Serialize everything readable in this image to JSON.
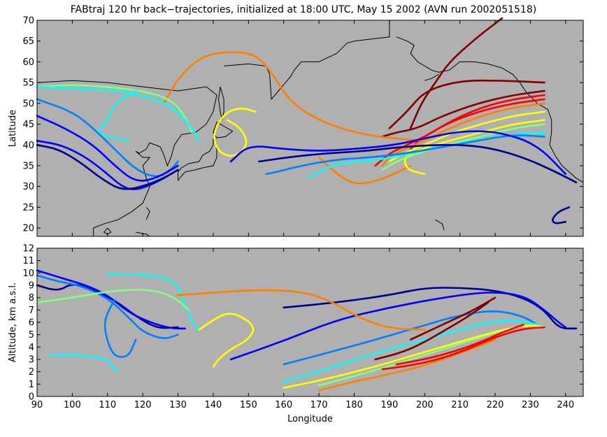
{
  "title": "FABtraj 120 hr back−trajectories, initialized at 18:00 UTC, May 15 2002 (AVN run 2002051518)",
  "colors": {
    "plot_background": "#b0b0b0",
    "figure_background": "#ffffff",
    "coastline": "#000000",
    "colormap": [
      "#00008f",
      "#0000ff",
      "#0080ff",
      "#00ffff",
      "#80ff80",
      "#ffff00",
      "#ff8000",
      "#ff0000",
      "#800000"
    ]
  },
  "chart_data": [
    {
      "type": "line",
      "panel": "map",
      "ylabel": "Latitude",
      "xlim": [
        90,
        245
      ],
      "ylim": [
        18,
        70
      ],
      "yticks": [
        20,
        25,
        30,
        35,
        40,
        45,
        50,
        55,
        60,
        65,
        70
      ],
      "grid": false,
      "series": [
        {
          "color": "#800000",
          "x": [
            234,
            225,
            215,
            205,
            198,
            192,
            188
          ],
          "y": [
            53,
            52,
            50,
            47,
            44,
            43,
            42
          ]
        },
        {
          "color": "#800000",
          "x": [
            234,
            222,
            210,
            200,
            195,
            190
          ],
          "y": [
            55,
            55.5,
            55.5,
            53,
            48,
            44
          ]
        },
        {
          "color": "#800000",
          "x": [
            222,
            215,
            207,
            203,
            199,
            196
          ],
          "y": [
            70.5,
            66,
            60,
            55,
            50,
            44
          ]
        },
        {
          "color": "#ff0000",
          "x": [
            234,
            225,
            216,
            208,
            202,
            198,
            196
          ],
          "y": [
            52,
            51,
            49,
            46,
            43,
            41,
            39
          ]
        },
        {
          "color": "#ff0000",
          "x": [
            234,
            225,
            215,
            206,
            200,
            195,
            190,
            186
          ],
          "y": [
            51,
            50,
            48,
            45,
            42,
            40,
            38,
            35
          ]
        },
        {
          "color": "#ff8000",
          "x": [
            234,
            225,
            216,
            207,
            200,
            194,
            190,
            188
          ],
          "y": [
            50,
            49,
            47,
            44,
            41,
            39,
            37,
            35
          ]
        },
        {
          "color": "#ff8000",
          "x": [
            200,
            185,
            172,
            162,
            157,
            152,
            143,
            136,
            130,
            126
          ],
          "y": [
            41,
            42,
            45,
            50,
            57,
            62,
            62.5,
            61,
            56,
            50
          ]
        },
        {
          "color": "#ff8000",
          "x": [
            170,
            175,
            180,
            185,
            190,
            196
          ],
          "y": [
            37,
            33,
            30.5,
            31,
            32.5,
            35
          ]
        },
        {
          "color": "#ffff00",
          "x": [
            234,
            225,
            216,
            208,
            200,
            194,
            190
          ],
          "y": [
            48,
            47,
            45,
            43,
            40,
            38,
            36
          ]
        },
        {
          "color": "#ffff00",
          "x": [
            234,
            225,
            216,
            207,
            199,
            194,
            195,
            200
          ],
          "y": [
            46,
            45,
            43,
            41,
            39,
            37,
            34,
            33
          ]
        },
        {
          "color": "#ffff00",
          "x": [
            152,
            148,
            144,
            141,
            140,
            142,
            146,
            150,
            148,
            144
          ],
          "y": [
            48,
            49,
            48,
            45,
            41,
            38,
            37,
            40,
            44,
            46
          ]
        },
        {
          "color": "#80ff80",
          "x": [
            234,
            225,
            216,
            206,
            198,
            192,
            188
          ],
          "y": [
            45,
            44,
            42,
            40,
            38,
            36,
            34
          ]
        },
        {
          "color": "#80ff80",
          "x": [
            90,
            100,
            110,
            120,
            128,
            132,
            134
          ],
          "y": [
            54,
            54.5,
            54,
            53,
            51,
            47,
            43
          ]
        },
        {
          "color": "#00ffff",
          "x": [
            234,
            224,
            214,
            204,
            196,
            188,
            180,
            173,
            167
          ],
          "y": [
            43,
            42.5,
            41,
            39.5,
            38,
            36.5,
            36,
            35,
            32
          ]
        },
        {
          "color": "#00ffff",
          "x": [
            90,
            102,
            114,
            124,
            130,
            134,
            136
          ],
          "y": [
            54,
            53.5,
            53,
            51,
            48,
            44,
            41
          ]
        },
        {
          "color": "#00ffff",
          "x": [
            118,
            112,
            110,
            108,
            107,
            110,
            116
          ],
          "y": [
            53,
            50,
            46,
            44,
            43,
            42,
            41
          ]
        },
        {
          "color": "#0080ff",
          "x": [
            234,
            225,
            215,
            205,
            195,
            185,
            175,
            165,
            158,
            155
          ],
          "y": [
            42,
            42.5,
            41,
            39.5,
            38,
            37,
            36.5,
            35,
            33.5,
            33
          ]
        },
        {
          "color": "#0080ff",
          "x": [
            90,
            100,
            106,
            112,
            118,
            124,
            128,
            130
          ],
          "y": [
            51,
            48,
            44,
            39,
            34,
            32,
            34,
            36
          ]
        },
        {
          "color": "#0000ff",
          "x": [
            240,
            232,
            222,
            212,
            202,
            192,
            180,
            170,
            160,
            150,
            145
          ],
          "y": [
            33,
            40,
            43,
            43.5,
            42,
            40,
            39,
            38.5,
            39,
            40,
            36
          ]
        },
        {
          "color": "#0000ff",
          "x": [
            90,
            98,
            106,
            112,
            118,
            124,
            130
          ],
          "y": [
            47,
            44,
            40,
            35,
            31,
            32,
            35
          ]
        },
        {
          "color": "#0000ff",
          "x": [
            90,
            97,
            104,
            110,
            114,
            118,
            124,
            130
          ],
          "y": [
            41,
            40,
            37,
            33,
            30,
            29,
            31,
            34
          ]
        },
        {
          "color": "#00008f",
          "x": [
            243,
            236,
            228,
            220,
            212,
            203,
            193,
            183,
            172,
            161,
            153
          ],
          "y": [
            31,
            34,
            37,
            39,
            40,
            40,
            39.5,
            38.5,
            38,
            37,
            36
          ]
        },
        {
          "color": "#00008f",
          "x": [
            90,
            96,
            102,
            108,
            114,
            120,
            126,
            130
          ],
          "y": [
            40,
            39,
            36,
            32,
            29,
            30,
            32,
            34
          ]
        },
        {
          "color": "#00008f",
          "x": [
            241,
            238,
            236,
            237,
            240
          ],
          "y": [
            25,
            24,
            22,
            21,
            21.5
          ]
        }
      ]
    },
    {
      "type": "line",
      "panel": "altitude",
      "xlabel": "Longitude",
      "ylabel": "Altitude, km a.s.l.",
      "xlim": [
        90,
        245
      ],
      "ylim": [
        0,
        12
      ],
      "xticks": [
        90,
        100,
        110,
        120,
        130,
        140,
        150,
        160,
        170,
        180,
        190,
        200,
        210,
        220,
        230,
        240
      ],
      "yticks": [
        0,
        1,
        2,
        3,
        4,
        5,
        6,
        7,
        8,
        9,
        10,
        11,
        12
      ],
      "grid": false,
      "series": [
        {
          "color": "#00008f",
          "x": [
            160,
            175,
            190,
            200,
            210,
            220,
            228,
            234,
            238,
            243
          ],
          "y": [
            7.2,
            7.6,
            8.2,
            8.8,
            8.8,
            8.6,
            8,
            7,
            5.5,
            5.5
          ]
        },
        {
          "color": "#00008f",
          "x": [
            90,
            96,
            100,
            106,
            112,
            118,
            124,
            130
          ],
          "y": [
            9,
            8.5,
            9.2,
            8.6,
            7.8,
            6.5,
            5.5,
            5.6
          ]
        },
        {
          "color": "#0000ff",
          "x": [
            145,
            160,
            175,
            190,
            205,
            218,
            228,
            234,
            238,
            240
          ],
          "y": [
            3,
            4.5,
            6.2,
            7.2,
            8,
            8.5,
            8.2,
            7,
            6,
            5.6
          ]
        },
        {
          "color": "#0000ff",
          "x": [
            90,
            98,
            104,
            110,
            116,
            122,
            128,
            132
          ],
          "y": [
            10.2,
            9.5,
            9,
            8.2,
            6.8,
            6,
            5.5,
            5.5
          ]
        },
        {
          "color": "#0080ff",
          "x": [
            160,
            172,
            185,
            198,
            210,
            220,
            228,
            232
          ],
          "y": [
            2.6,
            3.5,
            4.5,
            5.6,
            6.6,
            7,
            6.5,
            5.8
          ]
        },
        {
          "color": "#0080ff",
          "x": [
            90,
            96,
            102,
            110,
            116,
            120,
            126,
            130
          ],
          "y": [
            9.8,
            9.3,
            9,
            8,
            6.4,
            5.2,
            4.6,
            5
          ]
        },
        {
          "color": "#0080ff",
          "x": [
            112,
            110,
            109,
            110,
            112,
            116,
            118
          ],
          "y": [
            7.8,
            6.8,
            5.8,
            4.4,
            3.2,
            3.2,
            4.6
          ]
        },
        {
          "color": "#00ffff",
          "x": [
            160,
            172,
            186,
            200,
            212,
            222,
            230,
            234
          ],
          "y": [
            1.2,
            2.2,
            3.5,
            4.6,
            5.6,
            6.2,
            6,
            5.6
          ]
        },
        {
          "color": "#00ffff",
          "x": [
            110,
            118,
            126,
            130,
            132,
            134,
            136
          ],
          "y": [
            9.9,
            9.9,
            9.7,
            9,
            7.5,
            6,
            5.3
          ]
        },
        {
          "color": "#00ffff",
          "x": [
            93,
            100,
            106,
            110,
            111,
            112,
            113
          ],
          "y": [
            3.3,
            3.4,
            3.2,
            3,
            2.6,
            2.2,
            2
          ]
        },
        {
          "color": "#80ff80",
          "x": [
            170,
            182,
            194,
            206,
            216,
            224,
            230,
            234
          ],
          "y": [
            0.9,
            1.8,
            2.8,
            3.9,
            4.8,
            5.5,
            5.8,
            5.6
          ]
        },
        {
          "color": "#80ff80",
          "x": [
            90,
            100,
            110,
            120,
            126,
            130,
            133
          ],
          "y": [
            7.6,
            8,
            8.5,
            8.7,
            8.4,
            7.8,
            7
          ]
        },
        {
          "color": "#ffff00",
          "x": [
            160,
            172,
            186,
            200,
            212,
            222,
            230,
            234
          ],
          "y": [
            0.7,
            1.4,
            2.4,
            3.6,
            4.6,
            5.4,
            5.8,
            5.6
          ]
        },
        {
          "color": "#ffff00",
          "x": [
            136,
            140,
            144,
            148,
            152,
            150,
            146,
            142,
            140
          ],
          "y": [
            5.4,
            6.2,
            6.8,
            6.5,
            5.6,
            4.6,
            4,
            3.2,
            2.4
          ]
        },
        {
          "color": "#ff8000",
          "x": [
            130,
            140,
            150,
            160,
            168,
            174,
            182,
            190,
            200
          ],
          "y": [
            8.2,
            8.4,
            8.6,
            8.6,
            8.3,
            7.6,
            6.3,
            5.5,
            5.4
          ]
        },
        {
          "color": "#ff8000",
          "x": [
            170,
            180,
            190,
            200,
            210,
            220
          ],
          "y": [
            0.5,
            1.2,
            1.8,
            2.5,
            3.5,
            4.6
          ]
        },
        {
          "color": "#ff0000",
          "x": [
            188,
            196,
            204,
            212,
            220,
            228,
            234
          ],
          "y": [
            2.2,
            2.5,
            3,
            3.8,
            4.8,
            5.5,
            5.6
          ]
        },
        {
          "color": "#ff0000",
          "x": [
            192,
            200,
            208,
            216,
            222,
            228
          ],
          "y": [
            2.6,
            3,
            3.6,
            4.4,
            5.2,
            5.8
          ]
        },
        {
          "color": "#800000",
          "x": [
            186,
            194,
            200,
            206,
            212,
            218
          ],
          "y": [
            3,
            3.6,
            4.4,
            5.4,
            6.4,
            7.6
          ]
        },
        {
          "color": "#800000",
          "x": [
            196,
            202,
            208,
            214,
            220
          ],
          "y": [
            4.6,
            5.4,
            6.2,
            7,
            8
          ]
        }
      ]
    }
  ]
}
